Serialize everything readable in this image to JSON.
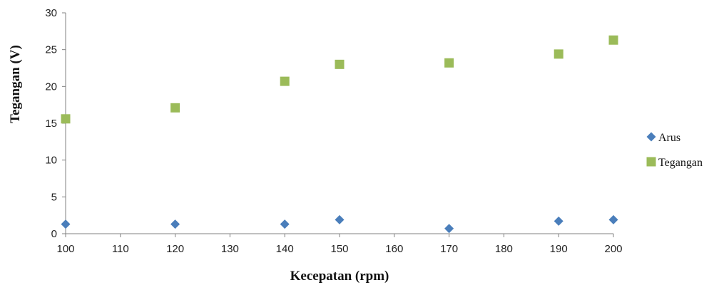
{
  "chart_data": {
    "type": "scatter",
    "title": "",
    "xlabel": "Kecepatan (rpm)",
    "ylabel": "Tegangan (V)",
    "xlim": [
      100,
      200
    ],
    "ylim": [
      0,
      30
    ],
    "xticks": [
      "100",
      "110",
      "120",
      "130",
      "140",
      "150",
      "160",
      "170",
      "180",
      "190",
      "200"
    ],
    "yticks": [
      "0",
      "5",
      "10",
      "15",
      "20",
      "25",
      "30"
    ],
    "grid": false,
    "legend_position": "right",
    "series": [
      {
        "name": "Arus",
        "marker": "diamond",
        "color": "#4a7ebb",
        "x": [
          100,
          120,
          140,
          150,
          170,
          190,
          200
        ],
        "y": [
          1.3,
          1.3,
          1.3,
          1.9,
          0.7,
          1.7,
          1.9
        ]
      },
      {
        "name": "Tegangan",
        "marker": "square",
        "color": "#9bbb59",
        "x": [
          100,
          120,
          140,
          150,
          170,
          190,
          200
        ],
        "y": [
          15.6,
          17.1,
          20.7,
          23.0,
          23.2,
          24.4,
          26.3
        ]
      }
    ]
  }
}
